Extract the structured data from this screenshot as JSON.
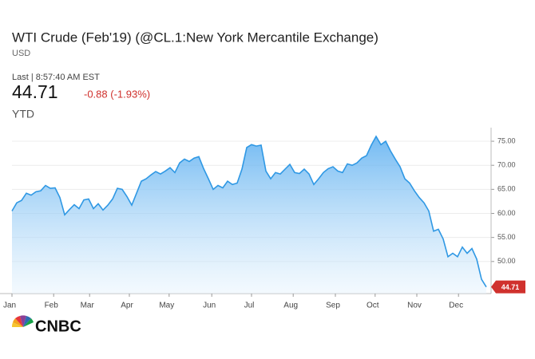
{
  "header": {
    "title": "WTI Crude (Feb'19) (@CL.1:New York Mercantile Exchange)",
    "currency": "USD",
    "last_time": "Last | 8:57:40 AM EST",
    "last": "44.71",
    "change": "-0.88 (-1.93%)",
    "range": "YTD",
    "logo": "CNBC"
  },
  "chart_data": {
    "type": "line",
    "series": [
      {
        "name": "WTI Crude",
        "color": "#2f98e4",
        "values": [
          60.5,
          62.2,
          62.7,
          64.2,
          63.8,
          64.5,
          64.7,
          65.8,
          65.2,
          65.3,
          63.3,
          59.7,
          60.8,
          61.8,
          61,
          62.8,
          63,
          61,
          62,
          60.7,
          61.7,
          63,
          65.2,
          65,
          63.5,
          61.7,
          64.2,
          66.7,
          67.2,
          68,
          68.7,
          68.2,
          68.8,
          69.5,
          68.5,
          70.5,
          71.3,
          70.8,
          71.5,
          71.8,
          69.3,
          67.2,
          65,
          65.8,
          65.3,
          66.7,
          66,
          66.3,
          69.2,
          73.7,
          74.3,
          74,
          74.2,
          68.8,
          67.2,
          68.5,
          68.2,
          69.2,
          70.2,
          68.5,
          68.3,
          69.2,
          68.2,
          66,
          67.2,
          68.5,
          69.3,
          69.7,
          68.8,
          68.5,
          70.3,
          70,
          70.5,
          71.5,
          72,
          74.2,
          76,
          74.3,
          75,
          73,
          71.3,
          69.7,
          67.2,
          66.3,
          64.7,
          63.3,
          62.2,
          60.5,
          56.3,
          56.7,
          54.7,
          51,
          51.7,
          51,
          53,
          51.7,
          52.7,
          50.5,
          46.3,
          44.71
        ]
      }
    ],
    "xlim": [
      0,
      100
    ],
    "xticks": [
      {
        "value": 0,
        "label": "Jan"
      },
      {
        "value": 8.7,
        "label": "Feb"
      },
      {
        "value": 16.2,
        "label": "Mar"
      },
      {
        "value": 24.5,
        "label": "Apr"
      },
      {
        "value": 32.8,
        "label": "May"
      },
      {
        "value": 41.7,
        "label": "Jun"
      },
      {
        "value": 50,
        "label": "Jul"
      },
      {
        "value": 58.7,
        "label": "Aug"
      },
      {
        "value": 67.5,
        "label": "Sep"
      },
      {
        "value": 75.8,
        "label": "Oct"
      },
      {
        "value": 84.5,
        "label": "Nov"
      },
      {
        "value": 93.2,
        "label": "Dec"
      }
    ],
    "ylim": [
      43.33,
      77.83
    ],
    "yticks": [
      {
        "value": 50,
        "label": "50.00"
      },
      {
        "value": 55,
        "label": "55.00"
      },
      {
        "value": 60,
        "label": "60.00"
      },
      {
        "value": 65,
        "label": "65.00"
      },
      {
        "value": 70,
        "label": "70.00"
      },
      {
        "value": 75,
        "label": "75.00"
      }
    ],
    "grid": true,
    "last_color": "#d0312d"
  }
}
